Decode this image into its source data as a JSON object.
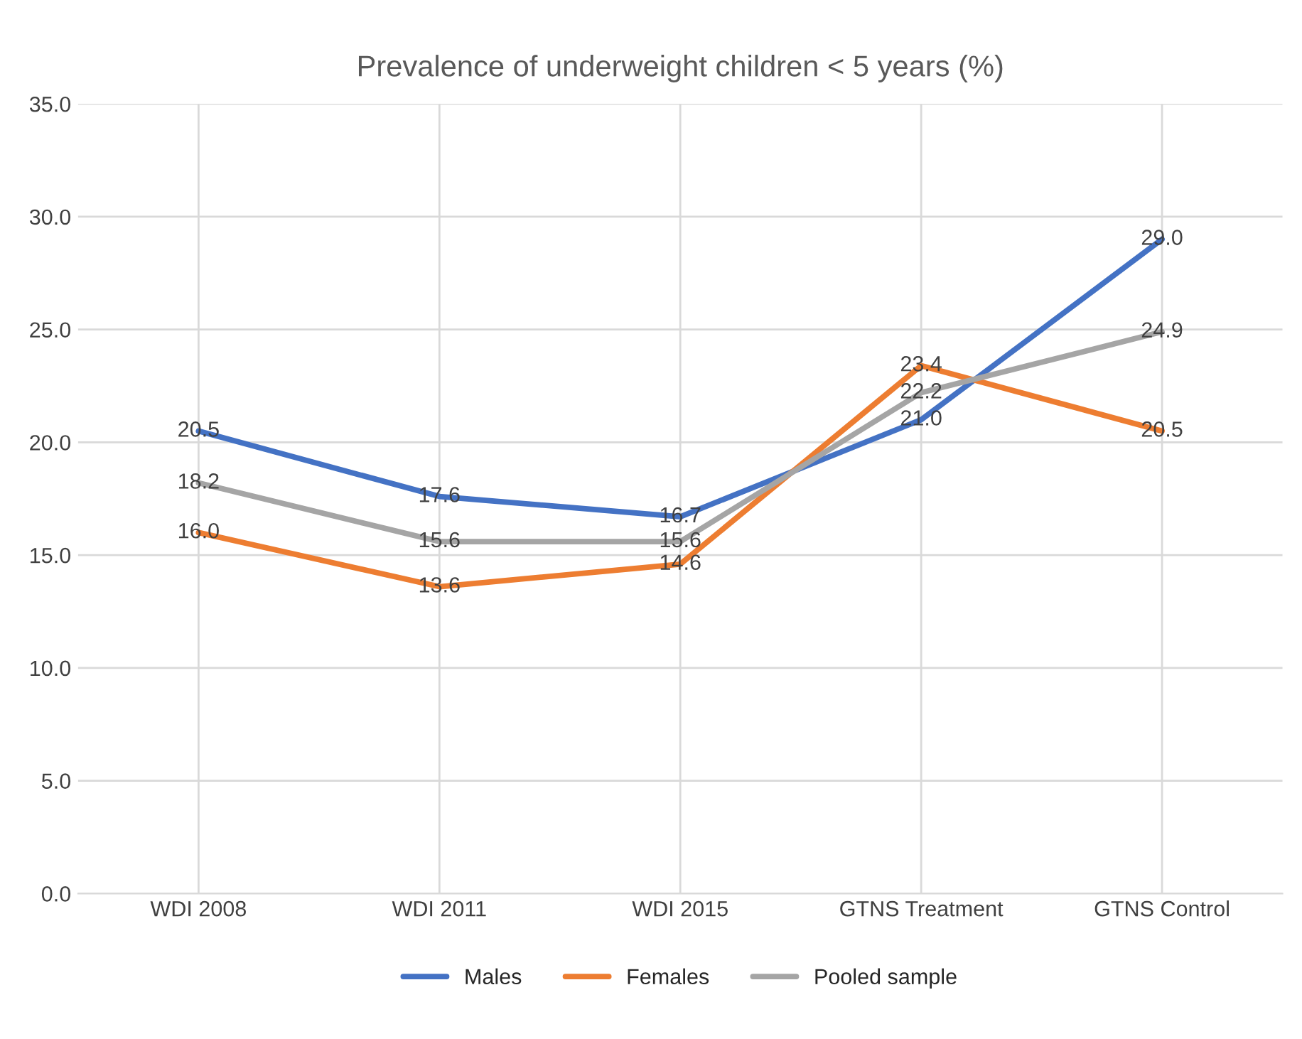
{
  "chart_data": {
    "type": "line",
    "title": "Prevalence of underweight children < 5 years (%)",
    "categories": [
      "WDI 2008",
      "WDI 2011",
      "WDI 2015",
      "GTNS Treatment",
      "GTNS Control"
    ],
    "series": [
      {
        "name": "Males",
        "color": "#4472c4",
        "values": [
          20.5,
          17.6,
          16.7,
          21.0,
          29.0
        ],
        "value_labels": [
          "20.5",
          "17.6",
          "16.7",
          "21.0",
          "29.0"
        ]
      },
      {
        "name": "Females",
        "color": "#ed7d31",
        "values": [
          16.0,
          13.6,
          14.6,
          23.4,
          20.5
        ],
        "value_labels": [
          "16.0",
          "13.6",
          "14.6",
          "23.4",
          "20.5"
        ]
      },
      {
        "name": "Pooled sample",
        "color": "#a5a5a5",
        "values": [
          18.2,
          15.6,
          15.6,
          22.2,
          24.9
        ],
        "value_labels": [
          "18.2",
          "15.6",
          "15.6",
          "22.2",
          "24.9"
        ]
      }
    ],
    "ylim": [
      0,
      35
    ],
    "yticks": [
      {
        "value": 0,
        "label": "0.0"
      },
      {
        "value": 5,
        "label": "5.0"
      },
      {
        "value": 10,
        "label": "10.0"
      },
      {
        "value": 15,
        "label": "15.0"
      },
      {
        "value": 20,
        "label": "20.0"
      },
      {
        "value": 25,
        "label": "25.0"
      },
      {
        "value": 30,
        "label": "30.0"
      },
      {
        "value": 35,
        "label": "35.0"
      }
    ],
    "grid": true,
    "legend": "bottom",
    "marker": "none",
    "line_style": "solid"
  }
}
